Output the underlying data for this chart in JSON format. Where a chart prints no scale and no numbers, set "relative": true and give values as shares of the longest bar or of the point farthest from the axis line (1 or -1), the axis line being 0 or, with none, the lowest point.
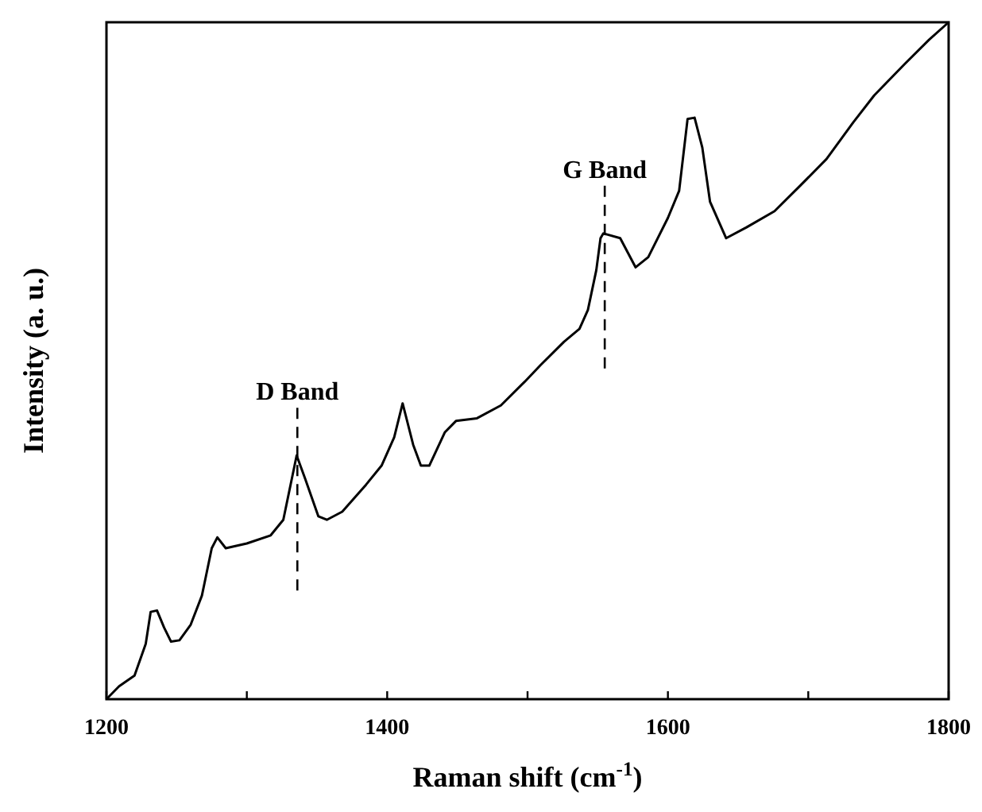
{
  "chart_data": {
    "type": "line",
    "relative": true,
    "xlabel": "Raman shift (cm$^{-1}$)",
    "ylabel": "Intensity (a. u.)",
    "xlim": [
      1200,
      1800
    ],
    "xticks": [
      1200,
      {
        "value": 1300,
        "label": null
      },
      1400,
      {
        "value": 1500,
        "label": null
      },
      1600,
      {
        "value": 1700,
        "label": null
      },
      1800
    ],
    "grid": false,
    "marker": "none",
    "line_style": "solid",
    "annotations": [
      {
        "text": "D Band",
        "x": 1336,
        "y": 0.36
      },
      {
        "text": "G Band",
        "x": 1555,
        "y": 0.688
      }
    ],
    "series": [
      {
        "color": "#000000",
        "x": [
          1200,
          1209,
          1220,
          1228,
          1231.5,
          1236,
          1241,
          1246,
          1252,
          1260,
          1268,
          1275,
          1279,
          1285,
          1300,
          1317,
          1326,
          1335.5,
          1341.5,
          1351,
          1357,
          1368,
          1385,
          1396,
          1405,
          1411,
          1418.5,
          1424,
          1430,
          1441,
          1449,
          1464,
          1481,
          1498,
          1509,
          1526,
          1537,
          1543,
          1549,
          1552,
          1554,
          1566,
          1577,
          1586,
          1600,
          1608,
          1614,
          1619,
          1624.5,
          1630,
          1641.5,
          1656,
          1676,
          1694,
          1713,
          1732,
          1747,
          1769,
          1786,
          1800
        ],
        "values": [
          0,
          0.019,
          0.035,
          0.082,
          0.129,
          0.131,
          0.106,
          0.085,
          0.087,
          0.11,
          0.153,
          0.223,
          0.239,
          0.223,
          0.23,
          0.242,
          0.265,
          0.36,
          0.326,
          0.27,
          0.265,
          0.277,
          0.317,
          0.345,
          0.387,
          0.437,
          0.376,
          0.345,
          0.345,
          0.394,
          0.411,
          0.415,
          0.434,
          0.469,
          0.493,
          0.528,
          0.547,
          0.575,
          0.634,
          0.681,
          0.688,
          0.681,
          0.638,
          0.653,
          0.711,
          0.751,
          0.857,
          0.859,
          0.815,
          0.735,
          0.681,
          0.697,
          0.721,
          0.758,
          0.798,
          0.852,
          0.892,
          0.939,
          0.974,
          1
        ]
      }
    ]
  }
}
